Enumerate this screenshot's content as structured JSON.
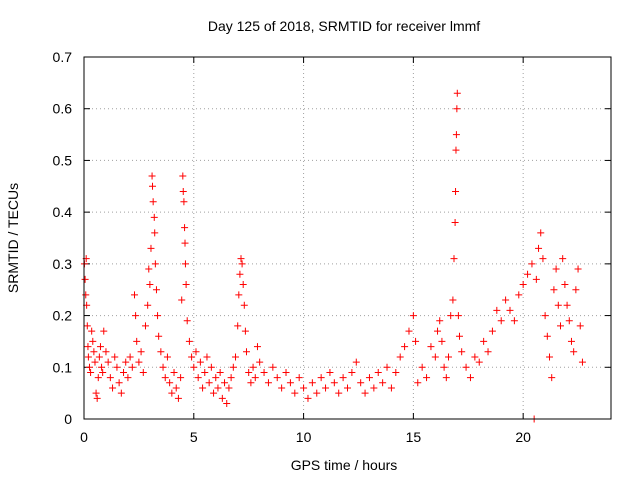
{
  "chart_data": {
    "type": "scatter",
    "title": "Day 125 of 2018, SRMTID for receiver lmmf",
    "xlabel": "GPS time / hours",
    "ylabel": "SRMTID / TECUs",
    "xlim": [
      0,
      24
    ],
    "ylim": [
      0,
      0.7
    ],
    "xticks": [
      0,
      5,
      10,
      15,
      20
    ],
    "xtick_labels": [
      "0",
      "5",
      "10",
      "15",
      "20"
    ],
    "yticks": [
      0,
      0.1,
      0.2,
      0.3,
      0.4,
      0.5,
      0.6,
      0.7
    ],
    "ytick_labels": [
      "0",
      "0.1",
      "0.2",
      "0.3",
      "0.4",
      "0.5",
      "0.6",
      "0.7"
    ],
    "grid": true,
    "marker": "+",
    "color": "#ff0000",
    "series": [
      {
        "name": "SRMTID",
        "points": [
          [
            0.02,
            0.3
          ],
          [
            0.05,
            0.27
          ],
          [
            0.08,
            0.24
          ],
          [
            0.1,
            0.31
          ],
          [
            0.12,
            0.22
          ],
          [
            0.15,
            0.18
          ],
          [
            0.18,
            0.14
          ],
          [
            0.2,
            0.12
          ],
          [
            0.25,
            0.1
          ],
          [
            0.3,
            0.09
          ],
          [
            0.35,
            0.17
          ],
          [
            0.4,
            0.15
          ],
          [
            0.45,
            0.13
          ],
          [
            0.5,
            0.11
          ],
          [
            0.55,
            0.05
          ],
          [
            0.6,
            0.04
          ],
          [
            0.65,
            0.08
          ],
          [
            0.7,
            0.12
          ],
          [
            0.75,
            0.14
          ],
          [
            0.8,
            0.1
          ],
          [
            0.85,
            0.09
          ],
          [
            0.9,
            0.17
          ],
          [
            1.0,
            0.13
          ],
          [
            1.1,
            0.11
          ],
          [
            1.2,
            0.08
          ],
          [
            1.3,
            0.06
          ],
          [
            1.4,
            0.12
          ],
          [
            1.5,
            0.1
          ],
          [
            1.6,
            0.07
          ],
          [
            1.7,
            0.05
          ],
          [
            1.8,
            0.09
          ],
          [
            1.9,
            0.11
          ],
          [
            2.0,
            0.08
          ],
          [
            2.1,
            0.12
          ],
          [
            2.2,
            0.1
          ],
          [
            2.3,
            0.24
          ],
          [
            2.35,
            0.2
          ],
          [
            2.4,
            0.15
          ],
          [
            2.5,
            0.11
          ],
          [
            2.6,
            0.13
          ],
          [
            2.7,
            0.09
          ],
          [
            2.8,
            0.18
          ],
          [
            2.9,
            0.22
          ],
          [
            2.95,
            0.29
          ],
          [
            3.0,
            0.26
          ],
          [
            3.05,
            0.33
          ],
          [
            3.1,
            0.47
          ],
          [
            3.12,
            0.45
          ],
          [
            3.15,
            0.42
          ],
          [
            3.2,
            0.39
          ],
          [
            3.22,
            0.36
          ],
          [
            3.25,
            0.3
          ],
          [
            3.3,
            0.25
          ],
          [
            3.35,
            0.2
          ],
          [
            3.4,
            0.16
          ],
          [
            3.5,
            0.13
          ],
          [
            3.6,
            0.1
          ],
          [
            3.7,
            0.08
          ],
          [
            3.8,
            0.12
          ],
          [
            3.9,
            0.07
          ],
          [
            4.0,
            0.05
          ],
          [
            4.1,
            0.09
          ],
          [
            4.2,
            0.06
          ],
          [
            4.3,
            0.04
          ],
          [
            4.4,
            0.08
          ],
          [
            4.45,
            0.23
          ],
          [
            4.5,
            0.47
          ],
          [
            4.52,
            0.44
          ],
          [
            4.55,
            0.42
          ],
          [
            4.58,
            0.37
          ],
          [
            4.6,
            0.34
          ],
          [
            4.62,
            0.3
          ],
          [
            4.65,
            0.26
          ],
          [
            4.7,
            0.19
          ],
          [
            4.8,
            0.15
          ],
          [
            4.9,
            0.12
          ],
          [
            5.0,
            0.1
          ],
          [
            5.1,
            0.13
          ],
          [
            5.2,
            0.08
          ],
          [
            5.3,
            0.11
          ],
          [
            5.4,
            0.06
          ],
          [
            5.5,
            0.09
          ],
          [
            5.6,
            0.12
          ],
          [
            5.7,
            0.07
          ],
          [
            5.8,
            0.1
          ],
          [
            5.9,
            0.05
          ],
          [
            6.0,
            0.08
          ],
          [
            6.1,
            0.06
          ],
          [
            6.2,
            0.09
          ],
          [
            6.3,
            0.04
          ],
          [
            6.4,
            0.07
          ],
          [
            6.5,
            0.03
          ],
          [
            6.6,
            0.06
          ],
          [
            6.7,
            0.08
          ],
          [
            6.8,
            0.1
          ],
          [
            6.9,
            0.12
          ],
          [
            7.0,
            0.18
          ],
          [
            7.05,
            0.24
          ],
          [
            7.1,
            0.28
          ],
          [
            7.15,
            0.31
          ],
          [
            7.2,
            0.3
          ],
          [
            7.25,
            0.26
          ],
          [
            7.3,
            0.22
          ],
          [
            7.35,
            0.17
          ],
          [
            7.4,
            0.13
          ],
          [
            7.5,
            0.09
          ],
          [
            7.6,
            0.07
          ],
          [
            7.7,
            0.1
          ],
          [
            7.8,
            0.08
          ],
          [
            7.9,
            0.14
          ],
          [
            8.0,
            0.11
          ],
          [
            8.2,
            0.09
          ],
          [
            8.4,
            0.07
          ],
          [
            8.6,
            0.1
          ],
          [
            8.8,
            0.08
          ],
          [
            9.0,
            0.06
          ],
          [
            9.2,
            0.09
          ],
          [
            9.4,
            0.07
          ],
          [
            9.6,
            0.05
          ],
          [
            9.8,
            0.08
          ],
          [
            10.0,
            0.06
          ],
          [
            10.2,
            0.04
          ],
          [
            10.4,
            0.07
          ],
          [
            10.6,
            0.05
          ],
          [
            10.8,
            0.08
          ],
          [
            11.0,
            0.06
          ],
          [
            11.2,
            0.09
          ],
          [
            11.4,
            0.07
          ],
          [
            11.6,
            0.05
          ],
          [
            11.8,
            0.08
          ],
          [
            12.0,
            0.06
          ],
          [
            12.2,
            0.09
          ],
          [
            12.4,
            0.11
          ],
          [
            12.6,
            0.07
          ],
          [
            12.8,
            0.05
          ],
          [
            13.0,
            0.08
          ],
          [
            13.2,
            0.06
          ],
          [
            13.4,
            0.09
          ],
          [
            13.6,
            0.07
          ],
          [
            13.8,
            0.1
          ],
          [
            14.0,
            0.06
          ],
          [
            14.2,
            0.09
          ],
          [
            14.4,
            0.12
          ],
          [
            14.6,
            0.14
          ],
          [
            14.8,
            0.17
          ],
          [
            15.0,
            0.2
          ],
          [
            15.1,
            0.15
          ],
          [
            15.2,
            0.07
          ],
          [
            15.4,
            0.1
          ],
          [
            15.6,
            0.08
          ],
          [
            15.8,
            0.14
          ],
          [
            16.0,
            0.12
          ],
          [
            16.1,
            0.17
          ],
          [
            16.2,
            0.19
          ],
          [
            16.3,
            0.15
          ],
          [
            16.4,
            0.1
          ],
          [
            16.5,
            0.08
          ],
          [
            16.6,
            0.12
          ],
          [
            16.7,
            0.2
          ],
          [
            16.8,
            0.23
          ],
          [
            16.85,
            0.31
          ],
          [
            16.9,
            0.38
          ],
          [
            16.92,
            0.44
          ],
          [
            16.94,
            0.52
          ],
          [
            16.96,
            0.55
          ],
          [
            16.98,
            0.6
          ],
          [
            17.0,
            0.63
          ],
          [
            17.05,
            0.2
          ],
          [
            17.1,
            0.16
          ],
          [
            17.2,
            0.13
          ],
          [
            17.4,
            0.1
          ],
          [
            17.6,
            0.08
          ],
          [
            17.8,
            0.12
          ],
          [
            18.0,
            0.11
          ],
          [
            18.2,
            0.15
          ],
          [
            18.4,
            0.13
          ],
          [
            18.6,
            0.17
          ],
          [
            18.8,
            0.21
          ],
          [
            19.0,
            0.19
          ],
          [
            19.2,
            0.23
          ],
          [
            19.4,
            0.21
          ],
          [
            19.6,
            0.19
          ],
          [
            19.8,
            0.24
          ],
          [
            20.0,
            0.26
          ],
          [
            20.2,
            0.28
          ],
          [
            20.4,
            0.3
          ],
          [
            20.5,
            0.0
          ],
          [
            20.6,
            0.27
          ],
          [
            20.7,
            0.33
          ],
          [
            20.8,
            0.36
          ],
          [
            20.9,
            0.31
          ],
          [
            21.0,
            0.2
          ],
          [
            21.1,
            0.16
          ],
          [
            21.2,
            0.12
          ],
          [
            21.3,
            0.08
          ],
          [
            21.4,
            0.25
          ],
          [
            21.5,
            0.29
          ],
          [
            21.6,
            0.22
          ],
          [
            21.7,
            0.18
          ],
          [
            21.8,
            0.31
          ],
          [
            21.9,
            0.26
          ],
          [
            22.0,
            0.22
          ],
          [
            22.1,
            0.19
          ],
          [
            22.2,
            0.15
          ],
          [
            22.3,
            0.13
          ],
          [
            22.4,
            0.25
          ],
          [
            22.5,
            0.29
          ],
          [
            22.6,
            0.18
          ],
          [
            22.7,
            0.11
          ]
        ]
      }
    ]
  }
}
